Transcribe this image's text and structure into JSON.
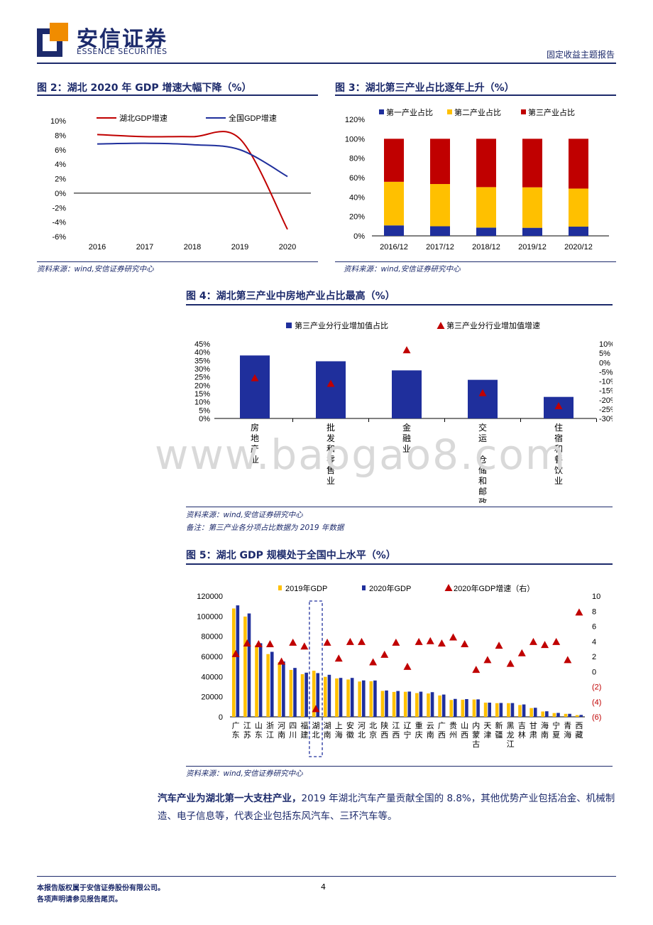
{
  "header": {
    "company_cn": "安信证券",
    "company_en": "ESSENCE SECURITIES",
    "report_type": "固定收益主题报告"
  },
  "fig2": {
    "title": "图 2：湖北 2020 年 GDP 增速大幅下降（%）",
    "source": "资料来源：wind,安信证券研究中心"
  },
  "fig3": {
    "title": "图 3：湖北第三产业占比逐年上升（%）",
    "source": "资料来源：wind,安信证券研究中心"
  },
  "fig4": {
    "title": "图 4：湖北第三产业中房地产业占比最高（%）",
    "source": "资料来源：wind,安信证券研究中心",
    "note": "备注：第三产业各分项占比数据为 2019 年数据"
  },
  "fig5": {
    "title": "图 5：湖北 GDP 规模处于全国中上水平（%）",
    "source": "资料来源：wind,安信证券研究中心"
  },
  "body": {
    "lead": "汽车产业为湖北第一大支柱产业，",
    "rest": "2019 年湖北汽车产量贡献全国的 8.8%，其他优势产业包括冶金、机械制造、电子信息等，代表企业包括东风汽车、三环汽车等。"
  },
  "footer": {
    "line1": "本报告版权属于安信证券股份有限公司。",
    "line2": "各项声明请参见报告尾页。",
    "page": "4"
  },
  "watermark": "www.baogao8.com",
  "colors": {
    "navy": "#1c2a6b",
    "red": "#c00000",
    "bar_blue": "#1f2f9c",
    "yellow": "#ffc000",
    "grey": "#d9d9d9"
  },
  "chart_data": [
    {
      "type": "line",
      "x": [
        "2016",
        "2017",
        "2018",
        "2019",
        "2020"
      ],
      "series": [
        {
          "name": "湖北GDP增速",
          "values": [
            8.1,
            7.8,
            7.8,
            7.5,
            -5.0
          ],
          "color": "#c00000"
        },
        {
          "name": "全国GDP增速",
          "values": [
            6.8,
            6.9,
            6.7,
            6.0,
            2.3
          ],
          "color": "#1f2f9c"
        }
      ],
      "yticks": [
        "10%",
        "8%",
        "6%",
        "4%",
        "2%",
        "0%",
        "-2%",
        "-4%",
        "-6%"
      ],
      "ylim": [
        -6,
        10
      ],
      "legend": "top"
    },
    {
      "type": "bar",
      "stacked": true,
      "categories": [
        "2016/12",
        "2017/12",
        "2018/12",
        "2019/12",
        "2020/12"
      ],
      "series": [
        {
          "name": "第一产业占比",
          "values": [
            10.8,
            9.9,
            8.5,
            8.3,
            9.5
          ],
          "color": "#1f2f9c"
        },
        {
          "name": "第二产业占比",
          "values": [
            44.9,
            43.5,
            41.7,
            41.7,
            39.2
          ],
          "color": "#ffc000"
        },
        {
          "name": "第三产业占比",
          "values": [
            44.3,
            46.6,
            49.8,
            50.0,
            51.3
          ],
          "color": "#c00000"
        }
      ],
      "yticks": [
        "120%",
        "100%",
        "80%",
        "60%",
        "40%",
        "20%",
        "0%"
      ],
      "ylim": [
        0,
        120
      ],
      "legend": "top"
    },
    {
      "type": "bar",
      "categories": [
        "房地产业",
        "批发和零售业",
        "金融业",
        "交运、仓储和邮政",
        "住宿和餐饮业"
      ],
      "series": [
        {
          "name": "第三产业分行业增加值占比",
          "values": [
            38,
            34.5,
            29,
            23.3,
            13
          ],
          "color": "#1f2f9c"
        },
        {
          "name": "第三产业分行业增加值增速",
          "values": [
            -8.5,
            -11.5,
            6.5,
            -16.5,
            -23.5
          ],
          "color": "#c00000",
          "marker": "triangle",
          "axis": "right"
        }
      ],
      "yticks_left": [
        "45%",
        "40%",
        "35%",
        "30%",
        "25%",
        "20%",
        "15%",
        "10%",
        "5%",
        "0%"
      ],
      "yticks_right": [
        "10%",
        "5%",
        "0%",
        "-5%",
        "-10%",
        "-15%",
        "-20%",
        "-25%",
        "-30%"
      ],
      "ylim_left": [
        0,
        45
      ],
      "ylim_right": [
        -30,
        10
      ],
      "legend": "top"
    },
    {
      "type": "bar",
      "categories": [
        "广东",
        "江苏",
        "山东",
        "浙江",
        "河南",
        "四川",
        "福建",
        "湖北",
        "湖南",
        "上海",
        "安徽",
        "河北",
        "北京",
        "陕西",
        "江西",
        "辽宁",
        "重庆",
        "云南",
        "广西",
        "贵州",
        "山西",
        "内蒙古",
        "天津",
        "新疆",
        "黑龙江",
        "吉林",
        "甘肃",
        "海南",
        "宁夏",
        "青海",
        "西藏"
      ],
      "series": [
        {
          "name": "2019年GDP",
          "values": [
            107671,
            99632,
            71067,
            62352,
            54259,
            46616,
            42395,
            45828,
            39752,
            38155,
            37114,
            35105,
            35371,
            25793,
            24758,
            24909,
            23606,
            23224,
            21237,
            16769,
            17027,
            17213,
            14104,
            13597,
            13613,
            11727,
            8718,
            5309,
            3748,
            2966,
            1698
          ],
          "color": "#ffc000"
        },
        {
          "name": "2020年GDP",
          "values": [
            110761,
            102719,
            73129,
            64613,
            54997,
            48599,
            43904,
            43443,
            41782,
            38701,
            38681,
            36207,
            36103,
            26182,
            25692,
            25115,
            25003,
            24522,
            22157,
            17827,
            17652,
            17360,
            14084,
            13798,
            13699,
            12311,
            9017,
            5532,
            3921,
            3006,
            1903
          ],
          "color": "#1f2f9c"
        },
        {
          "name": "2020年GDP增速（右）",
          "values": [
            2.3,
            3.7,
            3.6,
            3.6,
            1.3,
            3.8,
            3.3,
            -5.0,
            3.8,
            1.7,
            3.9,
            3.9,
            1.2,
            2.2,
            3.8,
            0.6,
            3.9,
            4.0,
            3.7,
            4.5,
            3.6,
            0.2,
            1.5,
            3.4,
            1.0,
            2.4,
            3.9,
            3.5,
            3.9,
            1.5,
            7.8
          ],
          "color": "#c00000",
          "marker": "triangle",
          "axis": "right"
        }
      ],
      "yticks_left": [
        "120000",
        "100000",
        "80000",
        "60000",
        "40000",
        "20000",
        "0"
      ],
      "yticks_right": [
        "10",
        "8",
        "6",
        "4",
        "2",
        "0",
        "(2)",
        "(4)",
        "(6)"
      ],
      "ylim_left": [
        0,
        120000
      ],
      "ylim_right": [
        -6,
        10
      ],
      "highlight": "湖北",
      "legend": "top"
    }
  ]
}
